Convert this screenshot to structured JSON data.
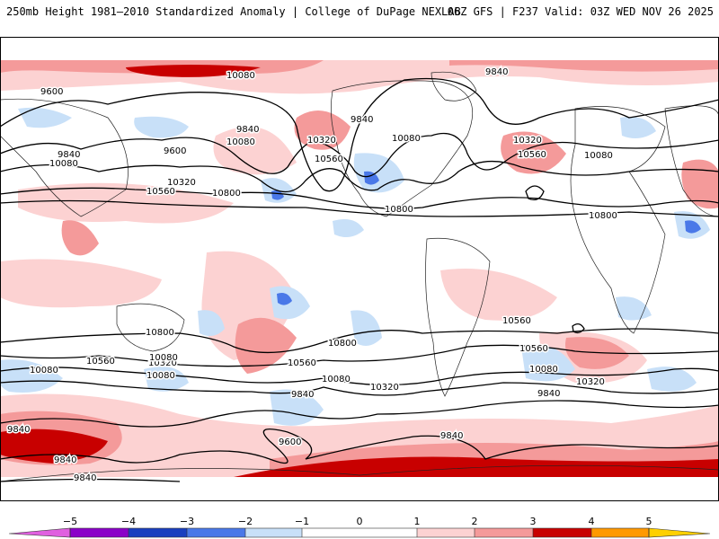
{
  "header": {
    "title": "250mb Height 1981–2010 Standardized Anomaly | College of DuPage NEXLAB",
    "run": "06Z GFS | F237 Valid: 03Z WED NOV 26 2025"
  },
  "colors": {
    "neg5": "#e060e0",
    "neg4": "#8a00c8",
    "neg3": "#1a3fbf",
    "neg2": "#4a78e8",
    "neg1": "#c8e0f8",
    "pos1": "#fcd2d2",
    "pos2": "#f49a9a",
    "pos3": "#ee5a5a",
    "pos4": "#c80000",
    "pos5": "#ff9900",
    "tip": "#ffd000"
  },
  "contour_labels": [
    "10080",
    "9600",
    "9840",
    "10080",
    "9840",
    "10080",
    "9600",
    "10560",
    "10320",
    "10800",
    "10320",
    "10560",
    "9840",
    "10080",
    "10320",
    "10560",
    "10080",
    "10800",
    "10800",
    "9840",
    "10080",
    "10320",
    "10560",
    "10800",
    "10560",
    "10800",
    "10080",
    "10560",
    "10320",
    "10080",
    "10560",
    "10080",
    "10320",
    "9840",
    "9840",
    "9600",
    "9840",
    "9840",
    "9840",
    "9840",
    "10080"
  ],
  "colorbar": {
    "ticks": [
      "−5",
      "−4",
      "−3",
      "−2",
      "−1",
      "0",
      "1",
      "2",
      "3",
      "4",
      "5"
    ]
  }
}
